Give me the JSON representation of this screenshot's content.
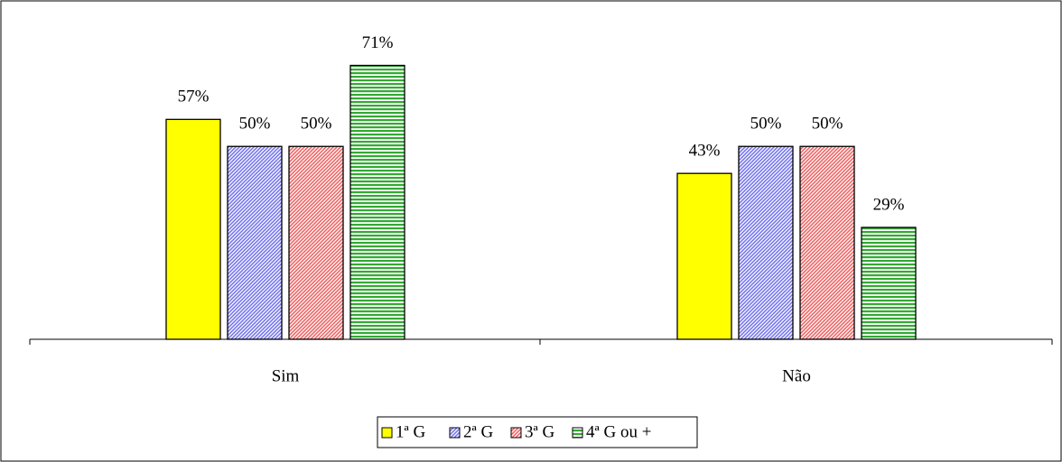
{
  "chart_data": {
    "type": "bar",
    "categories": [
      "Sim",
      "Não"
    ],
    "series": [
      {
        "name": "1ª G",
        "color": "#ffff00",
        "hatch": "none",
        "values": [
          57,
          43
        ],
        "value_labels": [
          "57%",
          "43%"
        ]
      },
      {
        "name": "2ª G",
        "color": "#7777ee",
        "hatch": "diagonal",
        "values": [
          50,
          50
        ],
        "value_labels": [
          "50%",
          "50%"
        ]
      },
      {
        "name": "3ª G",
        "color": "#ee6666",
        "hatch": "diagonal",
        "values": [
          50,
          50
        ],
        "value_labels": [
          "50%",
          "50%"
        ]
      },
      {
        "name": "4ª G ou +",
        "color": "#33aa33",
        "hatch": "horizontal",
        "values": [
          71,
          29
        ],
        "value_labels": [
          "71%",
          "29%"
        ]
      }
    ],
    "ylim": [
      0,
      80
    ],
    "legend": "bottom"
  }
}
